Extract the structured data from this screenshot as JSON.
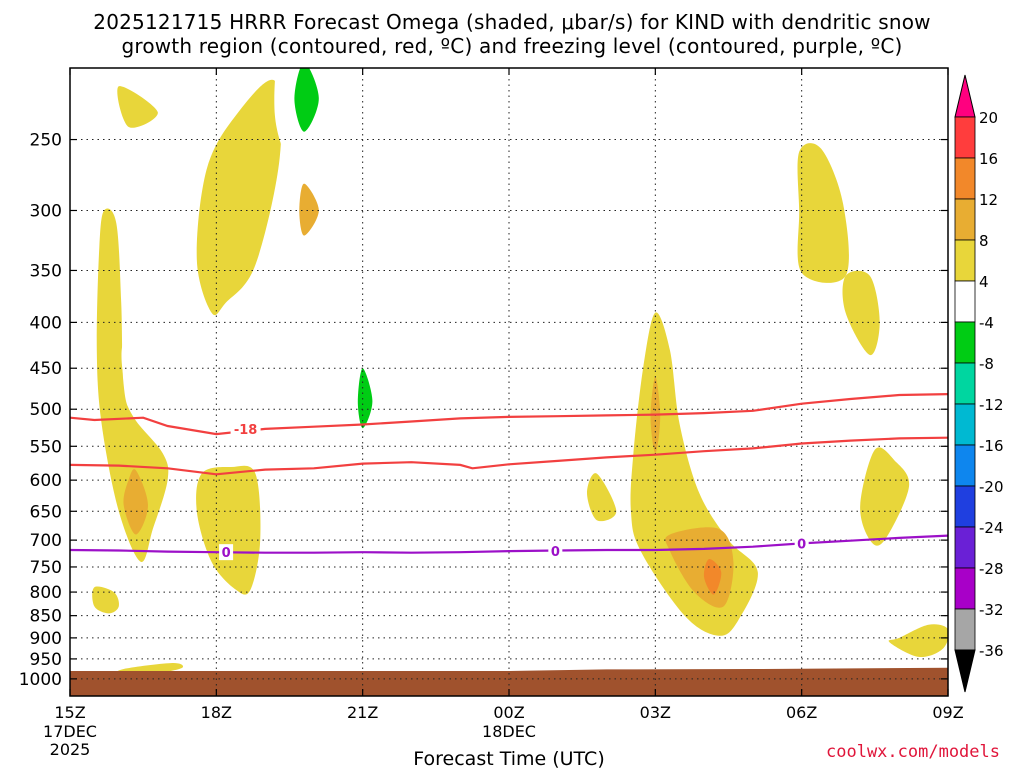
{
  "chart_data": {
    "type": "heatmap",
    "title_line1": "2025121715 HRRR Forecast Omega (shaded, μbar/s) for KIND with dendritic snow",
    "title_line2": "growth region (contoured, red, ºC) and freezing level (contoured, purple, ºC)",
    "xlabel": "Forecast Time (UTC)",
    "x_ticks": [
      {
        "hour": 0,
        "label": "15Z",
        "sub": "17DEC",
        "sub2": "2025"
      },
      {
        "hour": 3,
        "label": "18Z"
      },
      {
        "hour": 6,
        "label": "21Z"
      },
      {
        "hour": 9,
        "label": "00Z",
        "sub": "18DEC"
      },
      {
        "hour": 12,
        "label": "03Z"
      },
      {
        "hour": 15,
        "label": "06Z"
      },
      {
        "hour": 18,
        "label": "09Z"
      }
    ],
    "y_ticks": [
      250,
      300,
      350,
      400,
      450,
      500,
      550,
      600,
      650,
      700,
      750,
      800,
      850,
      900,
      950,
      1000
    ],
    "colorbar": {
      "labels": [
        "20",
        "16",
        "12",
        "8",
        "4",
        "-4",
        "-8",
        "-12",
        "-16",
        "-20",
        "-24",
        "-28",
        "-32",
        "-36"
      ],
      "bands": [
        {
          "lo": 16,
          "hi": 20,
          "color": "#ff3d3d"
        },
        {
          "lo": 12,
          "hi": 16,
          "color": "#f2882a"
        },
        {
          "lo": 8,
          "hi": 12,
          "color": "#e8ad32"
        },
        {
          "lo": 4,
          "hi": 8,
          "color": "#e8d63a"
        },
        {
          "lo": -4,
          "hi": 4,
          "color": "#ffffff"
        },
        {
          "lo": -8,
          "hi": -4,
          "color": "#00cc14"
        },
        {
          "lo": -12,
          "hi": -8,
          "color": "#00d6a0"
        },
        {
          "lo": -16,
          "hi": -12,
          "color": "#00b9d2"
        },
        {
          "lo": -20,
          "hi": -16,
          "color": "#0e86ee"
        },
        {
          "lo": -24,
          "hi": -20,
          "color": "#1f3fe0"
        },
        {
          "lo": -28,
          "hi": -24,
          "color": "#6a20d6"
        },
        {
          "lo": -32,
          "hi": -28,
          "color": "#a800c8"
        },
        {
          "lo": -36,
          "hi": -32,
          "color": "#a6a6a6"
        }
      ],
      "top_arrow_color": "#ff007f",
      "bottom_arrow_color": "#000000"
    },
    "ground_color": "#a0522d",
    "dgz_color": "#f24040",
    "freezing_color": "#9c10c8",
    "dgz_lines": [
      {
        "value": -18,
        "label": "-18",
        "points": [
          [
            0,
            511
          ],
          [
            0.5,
            514
          ],
          [
            1.5,
            511
          ],
          [
            2,
            522
          ],
          [
            3,
            533
          ],
          [
            4,
            526
          ],
          [
            5,
            523
          ],
          [
            6,
            520
          ],
          [
            7,
            516
          ],
          [
            8,
            512
          ],
          [
            9,
            510
          ],
          [
            10,
            509
          ],
          [
            11,
            508
          ],
          [
            12,
            507
          ],
          [
            13,
            505
          ],
          [
            14,
            502
          ],
          [
            15,
            493
          ],
          [
            16,
            487
          ],
          [
            17,
            482
          ],
          [
            18,
            481
          ]
        ]
      },
      {
        "value": -12,
        "label": "",
        "points": [
          [
            0,
            577
          ],
          [
            1,
            578
          ],
          [
            2,
            582
          ],
          [
            3,
            591
          ],
          [
            4,
            584
          ],
          [
            5,
            582
          ],
          [
            6,
            575
          ],
          [
            7,
            573
          ],
          [
            8,
            577
          ],
          [
            8.25,
            582
          ],
          [
            9,
            576
          ],
          [
            10,
            571
          ],
          [
            11,
            566
          ],
          [
            12,
            562
          ],
          [
            13,
            557
          ],
          [
            14,
            553
          ],
          [
            15,
            546
          ],
          [
            16,
            542
          ],
          [
            17,
            539
          ],
          [
            18,
            538
          ]
        ]
      }
    ],
    "freezing_line": {
      "value": 0,
      "label": "0",
      "points": [
        [
          0,
          718
        ],
        [
          1,
          719
        ],
        [
          2,
          721
        ],
        [
          3,
          722
        ],
        [
          4,
          723
        ],
        [
          5,
          723
        ],
        [
          6,
          722
        ],
        [
          7,
          723
        ],
        [
          8,
          722
        ],
        [
          9,
          720
        ],
        [
          10,
          719
        ],
        [
          11,
          718
        ],
        [
          12,
          718
        ],
        [
          13,
          716
        ],
        [
          14,
          712
        ],
        [
          15,
          706
        ],
        [
          16,
          701
        ],
        [
          17,
          696
        ],
        [
          18,
          692
        ]
      ]
    },
    "line_labels": [
      {
        "text": "-18",
        "hour": 3.6,
        "p": 526,
        "color": "dgz"
      },
      {
        "text": "0",
        "hour": 3.2,
        "p": 722,
        "color": "frz"
      },
      {
        "text": "0",
        "hour": 9.95,
        "p": 720,
        "color": "frz"
      },
      {
        "text": "0",
        "hour": 15.0,
        "p": 706,
        "color": "frz"
      }
    ],
    "omega_regions": [
      {
        "value": 4,
        "points": [
          [
            0.7,
            300
          ],
          [
            0.95,
            310
          ],
          [
            1.05,
            380
          ],
          [
            1.1,
            470
          ],
          [
            1.3,
            510
          ],
          [
            1.9,
            560
          ],
          [
            2.0,
            600
          ],
          [
            1.7,
            680
          ],
          [
            1.45,
            740
          ],
          [
            1.0,
            650
          ],
          [
            0.65,
            520
          ],
          [
            0.55,
            430
          ],
          [
            0.6,
            330
          ]
        ]
      },
      {
        "value": 8,
        "points": [
          [
            1.35,
            585
          ],
          [
            1.6,
            640
          ],
          [
            1.35,
            690
          ],
          [
            1.1,
            640
          ],
          [
            1.2,
            600
          ]
        ]
      },
      {
        "value": 4,
        "points": [
          [
            1.0,
            218
          ],
          [
            1.8,
            233
          ],
          [
            1.2,
            242
          ]
        ]
      },
      {
        "value": 4,
        "points": [
          [
            2.8,
            270
          ],
          [
            3.4,
            235
          ],
          [
            4.2,
            215
          ],
          [
            4.3,
            262
          ],
          [
            3.8,
            345
          ],
          [
            3.2,
            380
          ],
          [
            2.9,
            390
          ],
          [
            2.6,
            340
          ]
        ]
      },
      {
        "value": 8,
        "points": [
          [
            4.8,
            280
          ],
          [
            5.1,
            300
          ],
          [
            4.8,
            320
          ],
          [
            4.7,
            300
          ]
        ]
      },
      {
        "value": 4,
        "points": [
          [
            2.7,
            590
          ],
          [
            3.3,
            580
          ],
          [
            3.8,
            590
          ],
          [
            3.9,
            700
          ],
          [
            3.7,
            795
          ],
          [
            3.4,
            795
          ],
          [
            2.9,
            740
          ],
          [
            2.6,
            650
          ]
        ]
      },
      {
        "value": 4,
        "points": [
          [
            0.5,
            790
          ],
          [
            0.9,
            800
          ],
          [
            1.0,
            830
          ],
          [
            0.8,
            845
          ],
          [
            0.5,
            830
          ]
        ]
      },
      {
        "value": 4,
        "points": [
          [
            1.1,
            975
          ],
          [
            2.1,
            960
          ],
          [
            2.3,
            972
          ],
          [
            1.8,
            985
          ],
          [
            1.0,
            990
          ]
        ]
      },
      {
        "value": 4,
        "points": [
          [
            12.0,
            390
          ],
          [
            12.3,
            430
          ],
          [
            12.5,
            520
          ],
          [
            12.9,
            620
          ],
          [
            13.5,
            700
          ],
          [
            14.1,
            760
          ],
          [
            13.7,
            860
          ],
          [
            13.3,
            895
          ],
          [
            12.6,
            850
          ],
          [
            11.7,
            720
          ],
          [
            11.5,
            650
          ],
          [
            11.55,
            560
          ],
          [
            11.75,
            450
          ]
        ]
      },
      {
        "value": 8,
        "points": [
          [
            12.0,
            460
          ],
          [
            12.1,
            510
          ],
          [
            12.0,
            560
          ],
          [
            11.9,
            510
          ]
        ]
      },
      {
        "value": 8,
        "points": [
          [
            12.3,
            690
          ],
          [
            13.3,
            680
          ],
          [
            13.6,
            740
          ],
          [
            13.4,
            830
          ],
          [
            12.8,
            800
          ],
          [
            12.3,
            720
          ]
        ]
      },
      {
        "value": 12,
        "points": [
          [
            13.1,
            735
          ],
          [
            13.35,
            760
          ],
          [
            13.2,
            805
          ],
          [
            13.0,
            770
          ]
        ]
      },
      {
        "value": 4,
        "points": [
          [
            10.8,
            590
          ],
          [
            11.2,
            650
          ],
          [
            10.8,
            665
          ],
          [
            10.6,
            620
          ]
        ]
      },
      {
        "value": 4,
        "points": [
          [
            14.95,
            258
          ],
          [
            15.4,
            256
          ],
          [
            15.85,
            295
          ],
          [
            15.9,
            355
          ],
          [
            15.0,
            352
          ],
          [
            14.95,
            300
          ]
        ]
      },
      {
        "value": 4,
        "points": [
          [
            15.9,
            355
          ],
          [
            16.4,
            355
          ],
          [
            16.6,
            400
          ],
          [
            16.4,
            435
          ],
          [
            15.9,
            390
          ]
        ]
      },
      {
        "value": 4,
        "points": [
          [
            16.5,
            555
          ],
          [
            16.9,
            570
          ],
          [
            17.2,
            610
          ],
          [
            16.7,
            700
          ],
          [
            16.4,
            700
          ],
          [
            16.2,
            640
          ]
        ]
      },
      {
        "value": 4,
        "points": [
          [
            17.0,
            900
          ],
          [
            17.6,
            870
          ],
          [
            18.0,
            880
          ],
          [
            17.9,
            925
          ],
          [
            17.4,
            945
          ],
          [
            16.8,
            910
          ]
        ]
      }
    ],
    "omega_neg_regions": [
      {
        "value": -4,
        "points": [
          [
            4.35,
            190
          ],
          [
            4.9,
            185
          ],
          [
            5.4,
            195
          ],
          [
            5.45,
            235
          ],
          [
            5.2,
            270
          ],
          [
            4.6,
            270
          ],
          [
            4.2,
            235
          ]
        ]
      },
      {
        "value": -8,
        "points": [
          [
            4.8,
            205
          ],
          [
            5.1,
            225
          ],
          [
            4.8,
            245
          ],
          [
            4.6,
            225
          ]
        ]
      },
      {
        "value": -4,
        "points": [
          [
            1.1,
            420
          ],
          [
            1.8,
            415
          ],
          [
            2.2,
            440
          ],
          [
            2.1,
            480
          ],
          [
            2.0,
            540
          ],
          [
            1.8,
            495
          ],
          [
            1.2,
            480
          ]
        ]
      },
      {
        "value": -4,
        "points": [
          [
            6.0,
            310
          ],
          [
            6.3,
            325
          ],
          [
            6.15,
            355
          ],
          [
            6.0,
            340
          ]
        ]
      },
      {
        "value": -4,
        "points": [
          [
            6.0,
            400
          ],
          [
            6.4,
            450
          ],
          [
            6.6,
            540
          ],
          [
            6.8,
            650
          ],
          [
            6.9,
            700
          ],
          [
            6.8,
            790
          ],
          [
            6.3,
            840
          ],
          [
            5.85,
            830
          ],
          [
            5.85,
            720
          ],
          [
            5.75,
            600
          ],
          [
            5.7,
            480
          ]
        ]
      },
      {
        "value": -8,
        "points": [
          [
            6.0,
            450
          ],
          [
            6.2,
            490
          ],
          [
            6.0,
            525
          ],
          [
            5.9,
            490
          ]
        ]
      },
      {
        "value": -4,
        "points": [
          [
            2.0,
            740
          ],
          [
            2.2,
            780
          ],
          [
            2.1,
            830
          ],
          [
            1.9,
            790
          ]
        ]
      },
      {
        "value": -4,
        "points": [
          [
            11.6,
            835
          ],
          [
            12.0,
            845
          ],
          [
            11.9,
            860
          ],
          [
            11.6,
            850
          ]
        ]
      }
    ],
    "value_units": "μbar/s"
  },
  "branding": {
    "credit": "coolwx.com/models"
  }
}
